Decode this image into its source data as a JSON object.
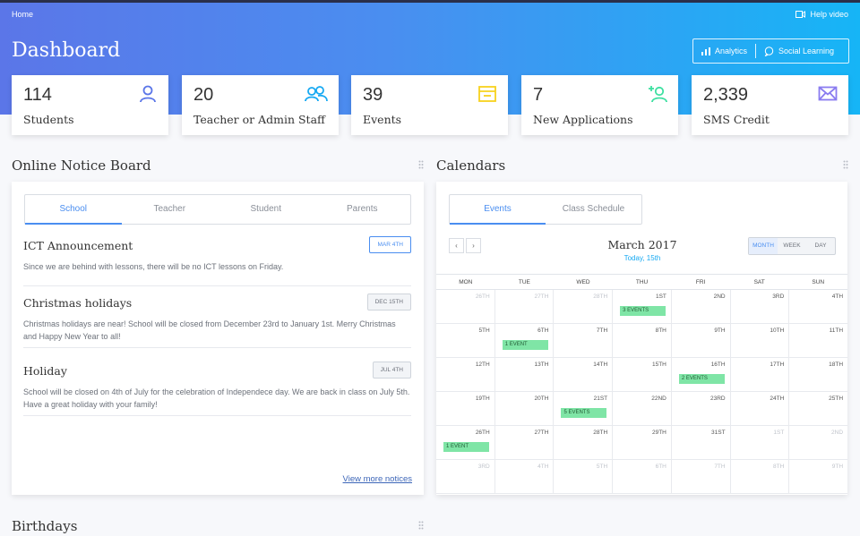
{
  "header": {
    "breadcrumb": "Home",
    "help_label": "Help video",
    "title": "Dashboard",
    "actions": [
      {
        "label": "Analytics",
        "icon": "bar-chart-icon"
      },
      {
        "label": "Social Learning",
        "icon": "chat-icon"
      }
    ]
  },
  "stats": [
    {
      "value": "114",
      "label": "Students",
      "icon": "user-icon",
      "color": "#5b76e8"
    },
    {
      "value": "20",
      "label": "Teacher or Admin Staff",
      "icon": "users-icon",
      "color": "#17a9f2"
    },
    {
      "value": "39",
      "label": "Events",
      "icon": "calendar-box-icon",
      "color": "#f7d21e"
    },
    {
      "value": "7",
      "label": "New Applications",
      "icon": "add-user-icon",
      "color": "#3ee0a1"
    },
    {
      "value": "2,339",
      "label": "SMS Credit",
      "icon": "envelope-icon",
      "color": "#8a7cf0"
    }
  ],
  "notice_board": {
    "title": "Online Notice Board",
    "tabs": [
      "School",
      "Teacher",
      "Student",
      "Parents"
    ],
    "active_tab": "School",
    "notices": [
      {
        "title": "ICT Announcement",
        "date": "MAR 4TH",
        "text": "Since we are behind with lessons, there will be no ICT lessons on Friday."
      },
      {
        "title": "Christmas holidays",
        "date": "DEC 15TH",
        "text": "Christmas holidays are near! School will be closed from December 23rd to January 1st. Merry Christmas and Happy New Year to all!"
      },
      {
        "title": "Holiday",
        "date": "JUL 4TH",
        "text": "School will be closed on 4th of July for the celebration of Independece day. We are back in class on July 5th. Have a great holiday with your family!"
      }
    ],
    "more_link": "View more notices"
  },
  "calendar": {
    "title": "Calendars",
    "tabs": [
      "Events",
      "Class Schedule"
    ],
    "active_tab": "Events",
    "month": "March 2017",
    "today": "Today, 15th",
    "views": [
      "MONTH",
      "WEEK",
      "DAY"
    ],
    "active_view": "MONTH",
    "weekdays": [
      "MON",
      "TUE",
      "WED",
      "THU",
      "FRI",
      "SAT",
      "SUN"
    ],
    "weeks": [
      [
        {
          "d": "26TH",
          "muted": true
        },
        {
          "d": "27TH",
          "muted": true
        },
        {
          "d": "28TH",
          "muted": true
        },
        {
          "d": "1ST",
          "ev": "3 EVENTS"
        },
        {
          "d": "2ND"
        },
        {
          "d": "3RD"
        },
        {
          "d": "4TH"
        }
      ],
      [
        {
          "d": "5TH"
        },
        {
          "d": "6TH",
          "ev": "1 EVENT"
        },
        {
          "d": "7TH"
        },
        {
          "d": "8TH"
        },
        {
          "d": "9TH"
        },
        {
          "d": "10TH"
        },
        {
          "d": "11TH"
        }
      ],
      [
        {
          "d": "12TH"
        },
        {
          "d": "13TH"
        },
        {
          "d": "14TH"
        },
        {
          "d": "15TH"
        },
        {
          "d": "16TH",
          "ev": "2 EVENTS"
        },
        {
          "d": "17TH"
        },
        {
          "d": "18TH"
        }
      ],
      [
        {
          "d": "19TH"
        },
        {
          "d": "20TH"
        },
        {
          "d": "21ST",
          "ev": "5 EVENTS"
        },
        {
          "d": "22ND"
        },
        {
          "d": "23RD"
        },
        {
          "d": "24TH"
        },
        {
          "d": "25TH"
        }
      ],
      [
        {
          "d": "26TH",
          "ev": "1 EVENT"
        },
        {
          "d": "27TH"
        },
        {
          "d": "28TH"
        },
        {
          "d": "29TH"
        },
        {
          "d": "31ST"
        },
        {
          "d": "1ST",
          "muted": true
        },
        {
          "d": "2ND",
          "muted": true
        }
      ],
      [
        {
          "d": "3RD",
          "muted": true
        },
        {
          "d": "4TH",
          "muted": true
        },
        {
          "d": "5TH",
          "muted": true
        },
        {
          "d": "6TH",
          "muted": true
        },
        {
          "d": "7TH",
          "muted": true
        },
        {
          "d": "8TH",
          "muted": true
        },
        {
          "d": "9TH",
          "muted": true
        }
      ]
    ]
  },
  "birthdays": {
    "title": "Birthdays"
  }
}
